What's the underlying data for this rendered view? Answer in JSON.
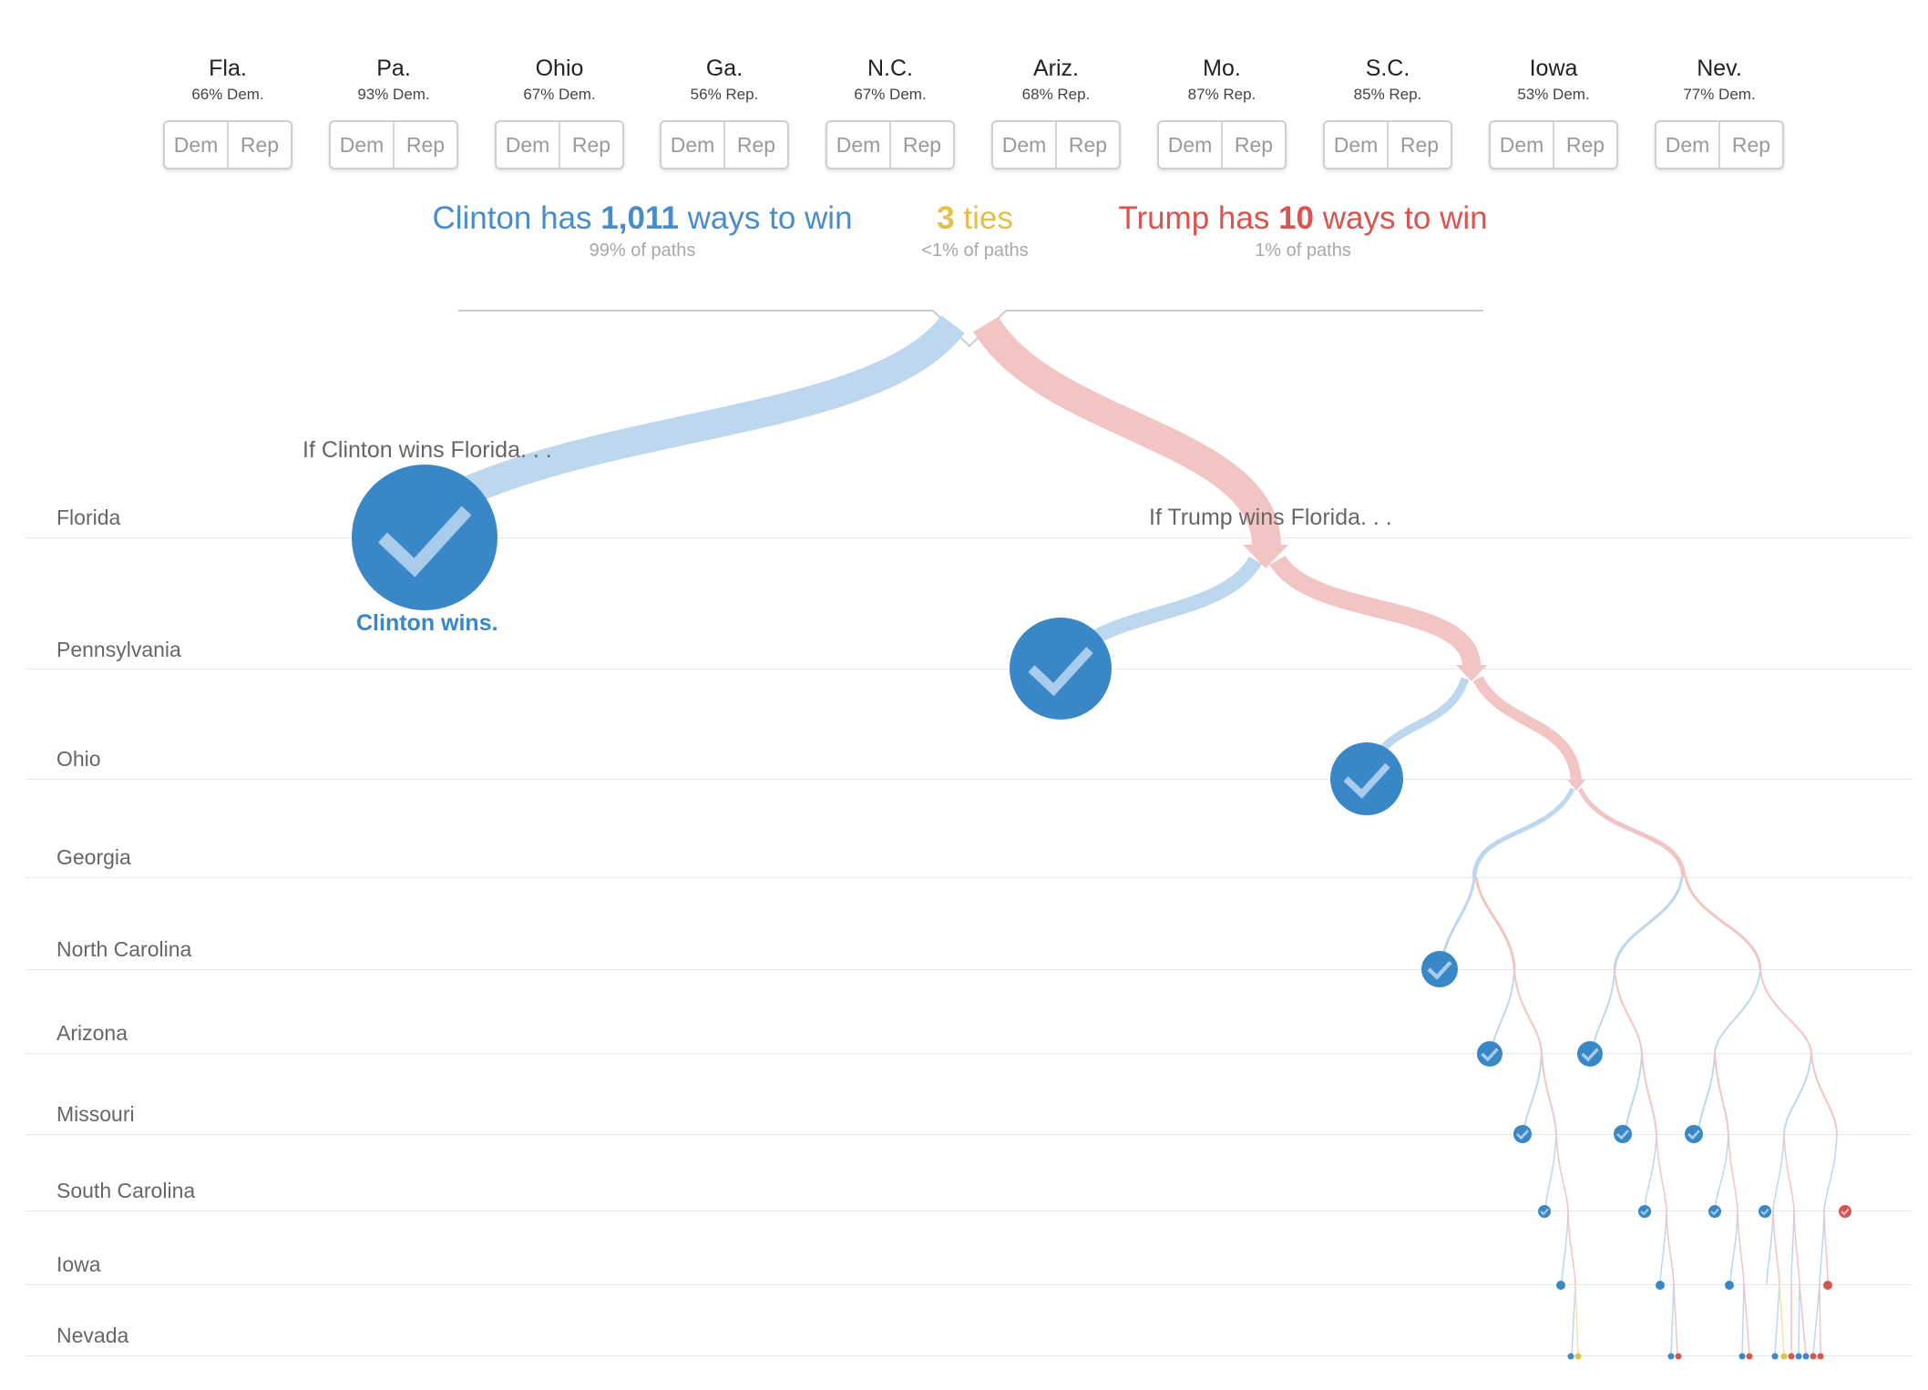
{
  "states": [
    {
      "abbr": "Fla.",
      "odds": "66% Dem.",
      "dem_label": "Dem",
      "rep_label": "Rep"
    },
    {
      "abbr": "Pa.",
      "odds": "93% Dem.",
      "dem_label": "Dem",
      "rep_label": "Rep"
    },
    {
      "abbr": "Ohio",
      "odds": "67% Dem.",
      "dem_label": "Dem",
      "rep_label": "Rep"
    },
    {
      "abbr": "Ga.",
      "odds": "56% Rep.",
      "dem_label": "Dem",
      "rep_label": "Rep"
    },
    {
      "abbr": "N.C.",
      "odds": "67% Dem.",
      "dem_label": "Dem",
      "rep_label": "Rep"
    },
    {
      "abbr": "Ariz.",
      "odds": "68% Rep.",
      "dem_label": "Dem",
      "rep_label": "Rep"
    },
    {
      "abbr": "Mo.",
      "odds": "87% Rep.",
      "dem_label": "Dem",
      "rep_label": "Rep"
    },
    {
      "abbr": "S.C.",
      "odds": "85% Rep.",
      "dem_label": "Dem",
      "rep_label": "Rep"
    },
    {
      "abbr": "Iowa",
      "odds": "53% Dem.",
      "dem_label": "Dem",
      "rep_label": "Rep"
    },
    {
      "abbr": "Nev.",
      "odds": "77% Dem.",
      "dem_label": "Dem",
      "rep_label": "Rep"
    }
  ],
  "summary": {
    "clinton": {
      "prefix": "Clinton has ",
      "count": "1,011",
      "suffix": " ways to win",
      "share": "99% of paths"
    },
    "ties": {
      "count": "3",
      "suffix": " ties",
      "share": "<1% of paths"
    },
    "trump": {
      "prefix": "Trump has ",
      "count": "10",
      "suffix": " ways to win",
      "share": "1% of paths"
    }
  },
  "rows": [
    "Florida",
    "Pennsylvania",
    "Ohio",
    "Georgia",
    "North Carolina",
    "Arizona",
    "Missouri",
    "South Carolina",
    "Iowa",
    "Nevada"
  ],
  "annotations": {
    "clinton_branch": "If Clinton wins Florida. . .",
    "trump_branch": "If Trump wins Florida. . .",
    "clinton_wins": "Clinton wins."
  },
  "colors": {
    "clinton": "#3a87c8",
    "clinton_path": "#bdd7ee",
    "trump": "#d9534f",
    "trump_path": "#f2c4c3",
    "tie": "#e2c04d"
  },
  "tree_outcomes": [
    {
      "state": "Florida",
      "winner": "Clinton",
      "icon": "checkmark-icon"
    },
    {
      "state": "Pennsylvania",
      "winner": "Clinton",
      "icon": "checkmark-icon"
    },
    {
      "state": "Ohio",
      "winner": "Clinton",
      "icon": "checkmark-icon"
    },
    {
      "state": "North Carolina",
      "winner": "Clinton",
      "icon": "checkmark-icon"
    },
    {
      "state": "Arizona",
      "winner": "Clinton",
      "icon": "checkmark-icon"
    },
    {
      "state": "Missouri",
      "winner": "Clinton",
      "icon": "checkmark-icon"
    },
    {
      "state": "South Carolina",
      "winner": "Clinton / Trump",
      "icon": "checkmark-icon"
    },
    {
      "state": "Iowa",
      "winner": "Clinton / Trump",
      "icon": "checkmark-icon"
    },
    {
      "state": "Nevada",
      "winner": "Clinton / Trump / Tie",
      "icon": "dot-icon"
    }
  ]
}
